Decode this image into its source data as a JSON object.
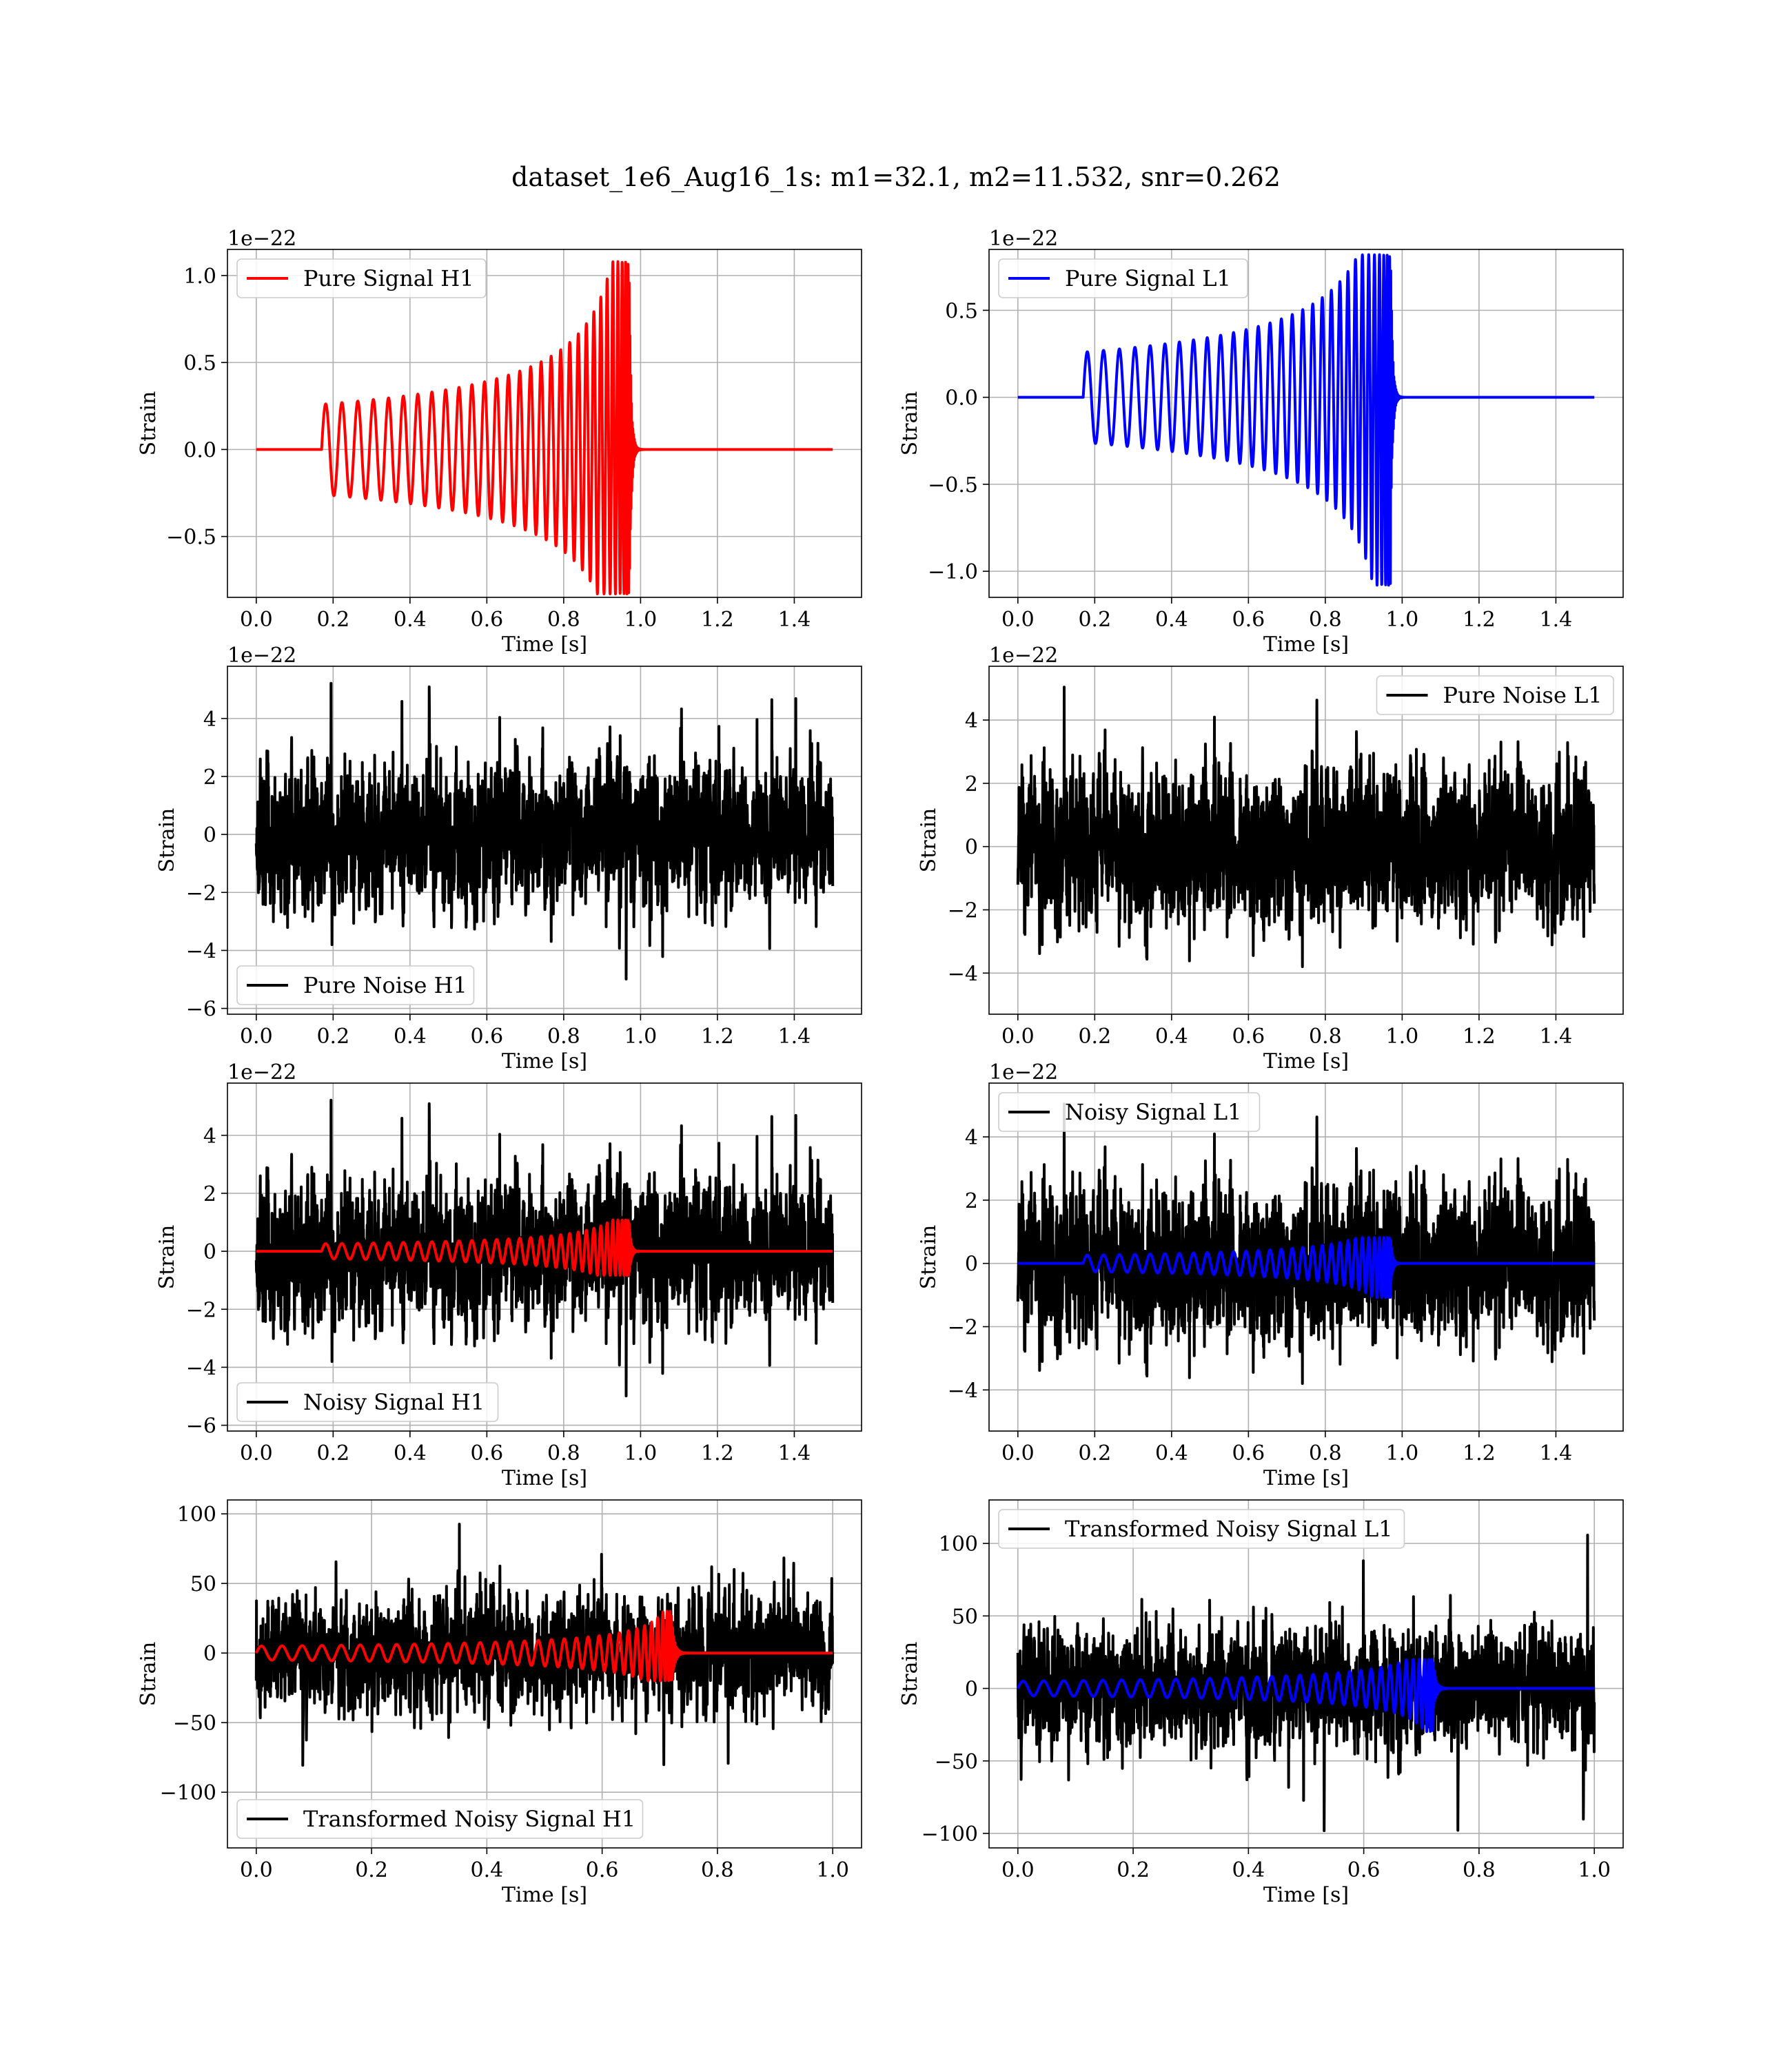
{
  "figure": {
    "suptitle": "dataset_1e6_Aug16_1s: m1=32.1, m2=11.532, snr=0.262"
  },
  "colors": {
    "h1": "#ff0000",
    "l1": "#0000ff",
    "noise": "#000000",
    "grid": "#b0b0b0"
  },
  "chart_data": [
    {
      "type": "line",
      "panel": "pure-signal-h1",
      "sci_label": "1e−22",
      "xlabel": "Time [s]",
      "ylabel": "Strain",
      "xlim": [
        -0.075,
        1.575
      ],
      "ylim": [
        -0.85,
        1.15
      ],
      "xticks": [
        0.0,
        0.2,
        0.4,
        0.6,
        0.8,
        1.0,
        1.2,
        1.4
      ],
      "yticks": [
        -0.5,
        0.0,
        0.5,
        1.0
      ],
      "xtick_labels": [
        "0.0",
        "0.2",
        "0.4",
        "0.6",
        "0.8",
        "1.0",
        "1.2",
        "1.4"
      ],
      "ytick_labels": [
        "−0.5",
        "0.0",
        "0.5",
        "1.0"
      ],
      "legend": {
        "position": "upper-left",
        "entries": [
          "Pure Signal H1"
        ]
      },
      "series": [
        {
          "name": "Pure Signal H1",
          "color": "#ff0000",
          "kind": "chirp",
          "t_start": 0.17,
          "t_merge": 0.97,
          "t_end": 1.5,
          "amp_start": 0.26,
          "amp_peak_pos": 1.08,
          "amp_peak_neg": -0.83,
          "n_cycles": 30
        }
      ],
      "grid": true
    },
    {
      "type": "line",
      "panel": "pure-signal-l1",
      "sci_label": "1e−22",
      "xlabel": "Time [s]",
      "ylabel": "Strain",
      "xlim": [
        -0.075,
        1.575
      ],
      "ylim": [
        -1.15,
        0.85
      ],
      "xticks": [
        0.0,
        0.2,
        0.4,
        0.6,
        0.8,
        1.0,
        1.2,
        1.4
      ],
      "yticks": [
        -1.0,
        -0.5,
        0.0,
        0.5
      ],
      "xtick_labels": [
        "0.0",
        "0.2",
        "0.4",
        "0.6",
        "0.8",
        "1.0",
        "1.2",
        "1.4"
      ],
      "ytick_labels": [
        "−1.0",
        "−0.5",
        "0.0",
        "0.5"
      ],
      "legend": {
        "position": "upper-left",
        "entries": [
          "Pure Signal L1"
        ]
      },
      "series": [
        {
          "name": "Pure Signal L1",
          "color": "#0000ff",
          "kind": "chirp",
          "t_start": 0.17,
          "t_merge": 0.97,
          "t_end": 1.5,
          "amp_start": 0.26,
          "amp_peak_pos": 0.82,
          "amp_peak_neg": -1.08,
          "n_cycles": 30
        }
      ],
      "grid": true
    },
    {
      "type": "line",
      "panel": "pure-noise-h1",
      "sci_label": "1e−22",
      "xlabel": "Time [s]",
      "ylabel": "Strain",
      "xlim": [
        -0.075,
        1.575
      ],
      "ylim": [
        -6.2,
        5.8
      ],
      "xticks": [
        0.0,
        0.2,
        0.4,
        0.6,
        0.8,
        1.0,
        1.2,
        1.4
      ],
      "yticks": [
        -6,
        -4,
        -2,
        0,
        2,
        4
      ],
      "xtick_labels": [
        "0.0",
        "0.2",
        "0.4",
        "0.6",
        "0.8",
        "1.0",
        "1.2",
        "1.4"
      ],
      "ytick_labels": [
        "−6",
        "−4",
        "−2",
        "0",
        "2",
        "4"
      ],
      "legend": {
        "position": "lower-left",
        "entries": [
          "Pure Noise H1"
        ]
      },
      "series": [
        {
          "name": "Pure Noise H1",
          "color": "#000000",
          "kind": "noise",
          "t_start": 0.0,
          "t_end": 1.5,
          "sigma": 1.5,
          "max": 5.4,
          "min": -5.8,
          "seed": 11
        }
      ],
      "grid": true
    },
    {
      "type": "line",
      "panel": "pure-noise-l1",
      "sci_label": "1e−22",
      "xlabel": "Time [s]",
      "ylabel": "Strain",
      "xlim": [
        -0.075,
        1.575
      ],
      "ylim": [
        -5.3,
        5.7
      ],
      "xticks": [
        0.0,
        0.2,
        0.4,
        0.6,
        0.8,
        1.0,
        1.2,
        1.4
      ],
      "yticks": [
        -4,
        -2,
        0,
        2,
        4
      ],
      "xtick_labels": [
        "0.0",
        "0.2",
        "0.4",
        "0.6",
        "0.8",
        "1.0",
        "1.2",
        "1.4"
      ],
      "ytick_labels": [
        "−4",
        "−2",
        "0",
        "2",
        "4"
      ],
      "legend": {
        "position": "upper-right",
        "entries": [
          "Pure Noise L1"
        ]
      },
      "series": [
        {
          "name": "Pure Noise L1",
          "color": "#000000",
          "kind": "noise",
          "t_start": 0.0,
          "t_end": 1.5,
          "sigma": 1.45,
          "max": 5.2,
          "min": -5.0,
          "seed": 23
        }
      ],
      "grid": true
    },
    {
      "type": "line",
      "panel": "noisy-signal-h1",
      "sci_label": "1e−22",
      "xlabel": "Time [s]",
      "ylabel": "Strain",
      "xlim": [
        -0.075,
        1.575
      ],
      "ylim": [
        -6.2,
        5.8
      ],
      "xticks": [
        0.0,
        0.2,
        0.4,
        0.6,
        0.8,
        1.0,
        1.2,
        1.4
      ],
      "yticks": [
        -6,
        -4,
        -2,
        0,
        2,
        4
      ],
      "xtick_labels": [
        "0.0",
        "0.2",
        "0.4",
        "0.6",
        "0.8",
        "1.0",
        "1.2",
        "1.4"
      ],
      "ytick_labels": [
        "−6",
        "−4",
        "−2",
        "0",
        "2",
        "4"
      ],
      "legend": {
        "position": "lower-left",
        "entries": [
          "Noisy Signal H1"
        ]
      },
      "series": [
        {
          "name": "Noisy Signal H1",
          "color": "#000000",
          "kind": "noise",
          "t_start": 0.0,
          "t_end": 1.5,
          "sigma": 1.5,
          "max": 5.4,
          "min": -5.8,
          "seed": 11
        },
        {
          "color": "#ff0000",
          "kind": "chirp",
          "t_start": 0.17,
          "t_merge": 0.97,
          "t_end": 1.5,
          "amp_start": 0.26,
          "amp_peak_pos": 1.08,
          "amp_peak_neg": -0.83,
          "n_cycles": 30
        }
      ],
      "grid": true
    },
    {
      "type": "line",
      "panel": "noisy-signal-l1",
      "sci_label": "1e−22",
      "xlabel": "Time [s]",
      "ylabel": "Strain",
      "xlim": [
        -0.075,
        1.575
      ],
      "ylim": [
        -5.3,
        5.7
      ],
      "xticks": [
        0.0,
        0.2,
        0.4,
        0.6,
        0.8,
        1.0,
        1.2,
        1.4
      ],
      "yticks": [
        -4,
        -2,
        0,
        2,
        4
      ],
      "xtick_labels": [
        "0.0",
        "0.2",
        "0.4",
        "0.6",
        "0.8",
        "1.0",
        "1.2",
        "1.4"
      ],
      "ytick_labels": [
        "−4",
        "−2",
        "0",
        "2",
        "4"
      ],
      "legend": {
        "position": "upper-left",
        "entries": [
          "Noisy Signal L1"
        ]
      },
      "series": [
        {
          "name": "Noisy Signal L1",
          "color": "#000000",
          "kind": "noise",
          "t_start": 0.0,
          "t_end": 1.5,
          "sigma": 1.45,
          "max": 5.2,
          "min": -5.0,
          "seed": 23
        },
        {
          "color": "#0000ff",
          "kind": "chirp",
          "t_start": 0.17,
          "t_merge": 0.97,
          "t_end": 1.5,
          "amp_start": 0.26,
          "amp_peak_pos": 0.82,
          "amp_peak_neg": -1.08,
          "n_cycles": 30
        }
      ],
      "grid": true
    },
    {
      "type": "line",
      "panel": "transformed-noisy-signal-h1",
      "sci_label": "",
      "xlabel": "Time [s]",
      "ylabel": "Strain",
      "xlim": [
        -0.05,
        1.05
      ],
      "ylim": [
        -140,
        110
      ],
      "xticks": [
        0.0,
        0.2,
        0.4,
        0.6,
        0.8,
        1.0
      ],
      "yticks": [
        -100,
        -50,
        0,
        50,
        100
      ],
      "xtick_labels": [
        "0.0",
        "0.2",
        "0.4",
        "0.6",
        "0.8",
        "1.0"
      ],
      "ytick_labels": [
        "−100",
        "−50",
        "0",
        "50",
        "100"
      ],
      "legend": {
        "position": "lower-left",
        "entries": [
          "Transformed Noisy Signal H1"
        ]
      },
      "series": [
        {
          "name": "Transformed Noisy Signal H1",
          "color": "#000000",
          "kind": "noise",
          "t_start": 0.0,
          "t_end": 1.0,
          "sigma": 24,
          "max": 100,
          "min": -105,
          "seed": 37
        },
        {
          "color": "#ff0000",
          "kind": "chirp",
          "t_start": 0.0,
          "t_merge": 0.72,
          "t_end": 1.0,
          "amp_start": 5,
          "amp_peak_pos": 30,
          "amp_peak_neg": -20,
          "n_cycles": 32
        }
      ],
      "grid": true
    },
    {
      "type": "line",
      "panel": "transformed-noisy-signal-l1",
      "sci_label": "",
      "xlabel": "Time [s]",
      "ylabel": "Strain",
      "xlim": [
        -0.05,
        1.05
      ],
      "ylim": [
        -110,
        130
      ],
      "xticks": [
        0.0,
        0.2,
        0.4,
        0.6,
        0.8,
        1.0
      ],
      "yticks": [
        -100,
        -50,
        0,
        50,
        100
      ],
      "xtick_labels": [
        "0.0",
        "0.2",
        "0.4",
        "0.6",
        "0.8",
        "1.0"
      ],
      "ytick_labels": [
        "−100",
        "−50",
        "0",
        "50",
        "100"
      ],
      "legend": {
        "position": "upper-left",
        "entries": [
          "Transformed Noisy Signal L1"
        ]
      },
      "series": [
        {
          "name": "Transformed Noisy Signal L1",
          "color": "#000000",
          "kind": "noise",
          "t_start": 0.0,
          "t_end": 1.0,
          "sigma": 24,
          "max": 120,
          "min": -100,
          "seed": 51
        },
        {
          "color": "#0000ff",
          "kind": "chirp",
          "t_start": 0.0,
          "t_merge": 0.72,
          "t_end": 1.0,
          "amp_start": 5,
          "amp_peak_pos": 20,
          "amp_peak_neg": -30,
          "n_cycles": 32
        }
      ],
      "grid": true
    }
  ]
}
